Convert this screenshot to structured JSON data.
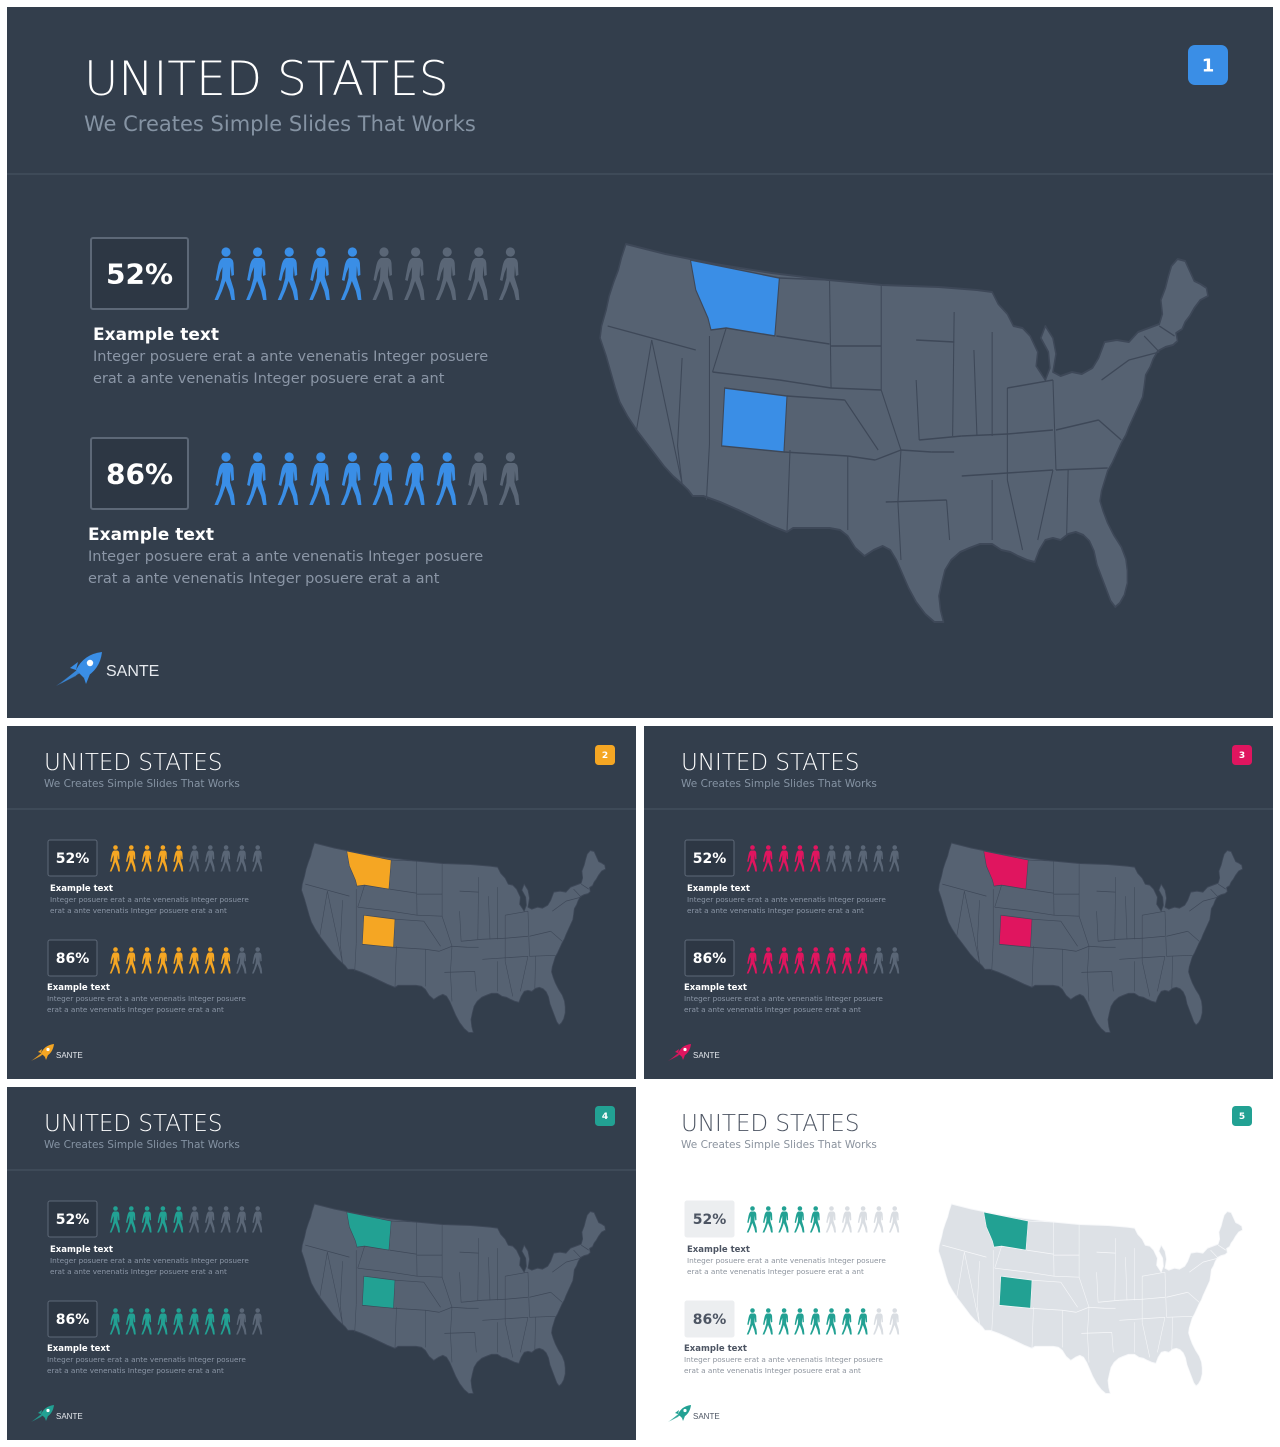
{
  "slides": [
    {
      "number": "1",
      "theme": "dark",
      "accent": "#3a8ee6",
      "title": "UNITED STATES",
      "subtitle": "We Creates Simple Slides That Works",
      "stats": [
        {
          "percent": "52%",
          "value": 52,
          "label": "Example text",
          "lines": [
            "Integer posuere erat a ante venenatis Integer posuere",
            "erat a ante venenatis Integer posuere erat a ant"
          ]
        },
        {
          "percent": "86%",
          "value": 86,
          "label": "Example text",
          "lines": [
            "Integer posuere erat a ante venenatis Integer posuere",
            "erat a ante venenatis Integer posuere erat a ant"
          ]
        }
      ],
      "highlighted_states": [
        "Montana",
        "Colorado"
      ],
      "brand": "SANTE"
    },
    {
      "number": "2",
      "theme": "dark",
      "accent": "#f5a623",
      "title": "UNITED STATES",
      "subtitle": "We Creates Simple Slides That Works",
      "stats": [
        {
          "percent": "52%",
          "value": 52,
          "label": "Example text",
          "lines": [
            "Integer posuere erat a ante venenatis Integer posuere",
            "erat a ante venenatis Integer posuere erat a ant"
          ]
        },
        {
          "percent": "86%",
          "value": 86,
          "label": "Example text",
          "lines": [
            "Integer posuere erat a ante venenatis Integer posuere",
            "erat a ante venenatis Integer posuere erat a ant"
          ]
        }
      ],
      "highlighted_states": [
        "Montana",
        "Colorado"
      ],
      "brand": "SANTE"
    },
    {
      "number": "3",
      "theme": "dark",
      "accent": "#e0155f",
      "title": "UNITED STATES",
      "subtitle": "We Creates Simple Slides That Works",
      "stats": [
        {
          "percent": "52%",
          "value": 52,
          "label": "Example text",
          "lines": [
            "Integer posuere erat a ante venenatis Integer posuere",
            "erat a ante venenatis Integer posuere erat a ant"
          ]
        },
        {
          "percent": "86%",
          "value": 86,
          "label": "Example text",
          "lines": [
            "Integer posuere erat a ante venenatis Integer posuere",
            "erat a ante venenatis Integer posuere erat a ant"
          ]
        }
      ],
      "highlighted_states": [
        "Montana",
        "Colorado"
      ],
      "brand": "SANTE"
    },
    {
      "number": "4",
      "theme": "dark",
      "accent": "#22a193",
      "title": "UNITED STATES",
      "subtitle": "We Creates Simple Slides That Works",
      "stats": [
        {
          "percent": "52%",
          "value": 52,
          "label": "Example text",
          "lines": [
            "Integer posuere erat a ante venenatis Integer posuere",
            "erat a ante venenatis Integer posuere erat a ant"
          ]
        },
        {
          "percent": "86%",
          "value": 86,
          "label": "Example text",
          "lines": [
            "Integer posuere erat a ante venenatis Integer posuere",
            "erat a ante venenatis Integer posuere erat a ant"
          ]
        }
      ],
      "highlighted_states": [
        "Montana",
        "Colorado"
      ],
      "brand": "SANTE"
    },
    {
      "number": "5",
      "theme": "light",
      "accent": "#22a193",
      "title": "UNITED STATES",
      "subtitle": "We Creates Simple Slides That Works",
      "stats": [
        {
          "percent": "52%",
          "value": 52,
          "label": "Example text",
          "lines": [
            "Integer posuere erat a ante venenatis Integer posuere",
            "erat a ante venenatis Integer posuere erat a ant"
          ]
        },
        {
          "percent": "86%",
          "value": 86,
          "label": "Example text",
          "lines": [
            "Integer posuere erat a ante venenatis Integer posuere",
            "erat a ante venenatis Integer posuere erat a ant"
          ]
        }
      ],
      "highlighted_states": [
        "Montana",
        "Colorado"
      ],
      "brand": "SANTE"
    }
  ],
  "icons": {
    "person": "walking-person-icon",
    "logo": "rocket-logo-icon",
    "map": "us-map"
  },
  "palette": {
    "dark": {
      "bg": "#333e4c",
      "map": "#566272",
      "state_border": "#3e4858",
      "title": "#ffffff",
      "subtitle": "#8593a3",
      "box_bg": "#2d3744",
      "box_border": "#5d6877",
      "pct_text": "#ffffff",
      "label": "#ffffff",
      "body": "#8b96a6",
      "inactive_person": "#5a6676",
      "divider": "#4a5564",
      "brand": "#e6e9ee"
    },
    "light": {
      "bg": "#ffffff",
      "map": "#dde1e6",
      "state_border": "#f7f8fa",
      "title": "#4d5563",
      "subtitle": "#8a929d",
      "box_bg": "#eceef0",
      "box_border": "#eceef0",
      "pct_text": "#4d5563",
      "label": "#4d5563",
      "body": "#8d949e",
      "inactive_person": "#d9dde2",
      "divider": "#ffffff",
      "brand": "#4d5563"
    }
  }
}
